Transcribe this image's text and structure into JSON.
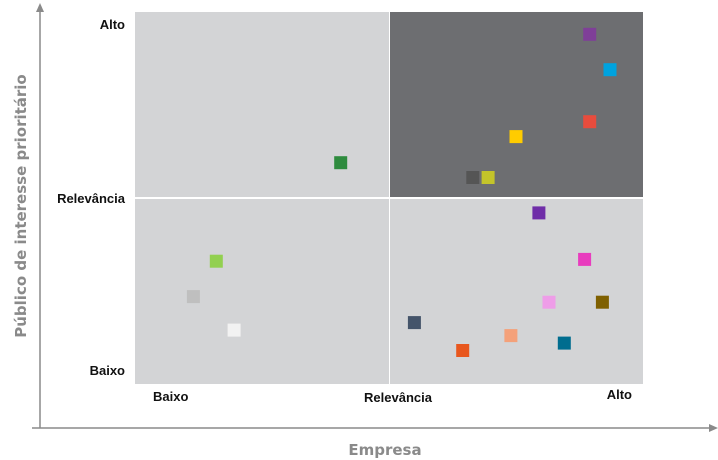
{
  "chart_data": {
    "type": "scatter",
    "xlabel": "Empresa",
    "ylabel": "Público de interesse prioritário",
    "xlim": [
      0,
      2
    ],
    "ylim": [
      0,
      2
    ],
    "x_tick_labels": [
      "Baixo",
      "Relevância",
      "Alto"
    ],
    "y_tick_labels": [
      "Baixo",
      "Relevância",
      "Alto"
    ],
    "grid": false,
    "legend": "none",
    "colors": {
      "quadrant_light": "#d3d4d6",
      "quadrant_dark": "#6d6e71",
      "axis": "#8a8a8a"
    },
    "points": [
      {
        "x": 0.81,
        "y": 1.19,
        "color": "#2e8b3e"
      },
      {
        "x": 0.32,
        "y": 0.66,
        "color": "#92d050"
      },
      {
        "x": 0.23,
        "y": 0.47,
        "color": "#bfbfbf"
      },
      {
        "x": 0.39,
        "y": 0.29,
        "color": "#f2f2f2"
      },
      {
        "x": 1.79,
        "y": 1.88,
        "color": "#7f3f98"
      },
      {
        "x": 1.87,
        "y": 1.69,
        "color": "#00a3e0"
      },
      {
        "x": 1.79,
        "y": 1.41,
        "color": "#e84c3d"
      },
      {
        "x": 1.5,
        "y": 1.33,
        "color": "#ffcc00"
      },
      {
        "x": 1.33,
        "y": 1.11,
        "color": "#555555"
      },
      {
        "x": 1.39,
        "y": 1.11,
        "color": "#c4c42a"
      },
      {
        "x": 1.59,
        "y": 0.92,
        "color": "#6f2da8"
      },
      {
        "x": 1.77,
        "y": 0.67,
        "color": "#e83cbe"
      },
      {
        "x": 1.63,
        "y": 0.44,
        "color": "#ee9de8"
      },
      {
        "x": 1.84,
        "y": 0.44,
        "color": "#7f6000"
      },
      {
        "x": 1.1,
        "y": 0.33,
        "color": "#44546a"
      },
      {
        "x": 1.48,
        "y": 0.26,
        "color": "#f4a17a"
      },
      {
        "x": 1.69,
        "y": 0.22,
        "color": "#006d8f"
      },
      {
        "x": 1.29,
        "y": 0.18,
        "color": "#e8571e"
      }
    ]
  }
}
